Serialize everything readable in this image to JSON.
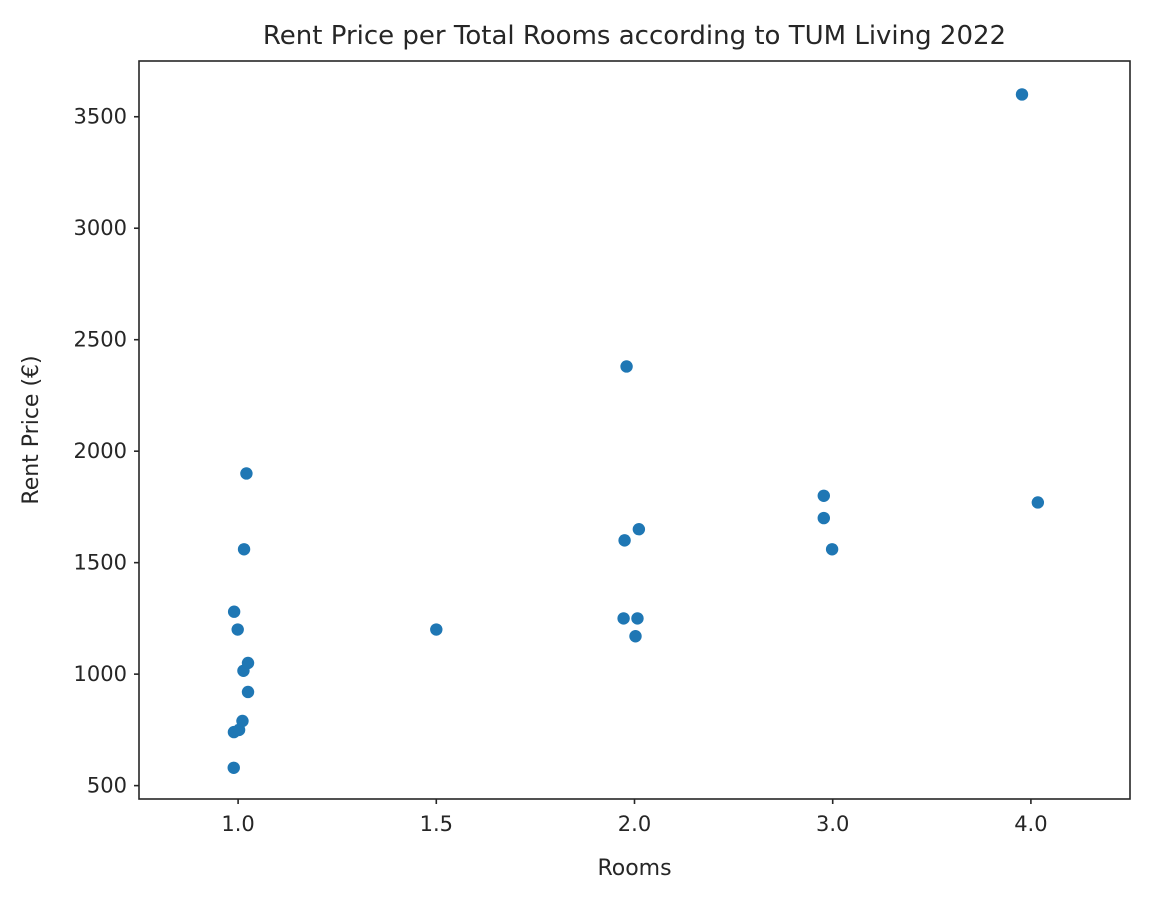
{
  "chart_data": {
    "type": "scatter",
    "title": "Rent Price per Total Rooms according to TUM Living 2022",
    "xlabel": "Rooms",
    "ylabel": "Rent Price (€)",
    "x_axis": "categorical with horizontal jitter",
    "categories": [
      "1.0",
      "1.5",
      "2.0",
      "3.0",
      "4.0"
    ],
    "ylim": [
      440,
      3750
    ],
    "yticks": [
      500,
      1000,
      1500,
      2000,
      2500,
      3000,
      3500
    ],
    "grid": false,
    "legend": "none",
    "marker_color": "#1f77b4",
    "points": [
      {
        "category": "1.0",
        "jitter": -0.02,
        "y": 1280
      },
      {
        "category": "1.0",
        "jitter": -0.002,
        "y": 1200
      },
      {
        "category": "1.0",
        "jitter": -0.021,
        "y": 740
      },
      {
        "category": "1.0",
        "jitter": 0.005,
        "y": 750
      },
      {
        "category": "1.0",
        "jitter": 0.022,
        "y": 790
      },
      {
        "category": "1.0",
        "jitter": -0.022,
        "y": 580
      },
      {
        "category": "1.0",
        "jitter": 0.027,
        "y": 1015
      },
      {
        "category": "1.0",
        "jitter": 0.05,
        "y": 1050
      },
      {
        "category": "1.0",
        "jitter": 0.05,
        "y": 920
      },
      {
        "category": "1.0",
        "jitter": 0.03,
        "y": 1560
      },
      {
        "category": "1.0",
        "jitter": 0.042,
        "y": 1900
      },
      {
        "category": "1.5",
        "jitter": 0.0,
        "y": 1200
      },
      {
        "category": "2.0",
        "jitter": -0.05,
        "y": 1600
      },
      {
        "category": "2.0",
        "jitter": -0.055,
        "y": 1250
      },
      {
        "category": "2.0",
        "jitter": 0.015,
        "y": 1250
      },
      {
        "category": "2.0",
        "jitter": 0.022,
        "y": 1650
      },
      {
        "category": "2.0",
        "jitter": 0.005,
        "y": 1170
      },
      {
        "category": "2.0",
        "jitter": -0.04,
        "y": 2380
      },
      {
        "category": "3.0",
        "jitter": -0.045,
        "y": 1800
      },
      {
        "category": "3.0",
        "jitter": -0.045,
        "y": 1700
      },
      {
        "category": "3.0",
        "jitter": -0.003,
        "y": 1560
      },
      {
        "category": "4.0",
        "jitter": -0.045,
        "y": 3600
      },
      {
        "category": "4.0",
        "jitter": 0.035,
        "y": 1770
      }
    ]
  }
}
